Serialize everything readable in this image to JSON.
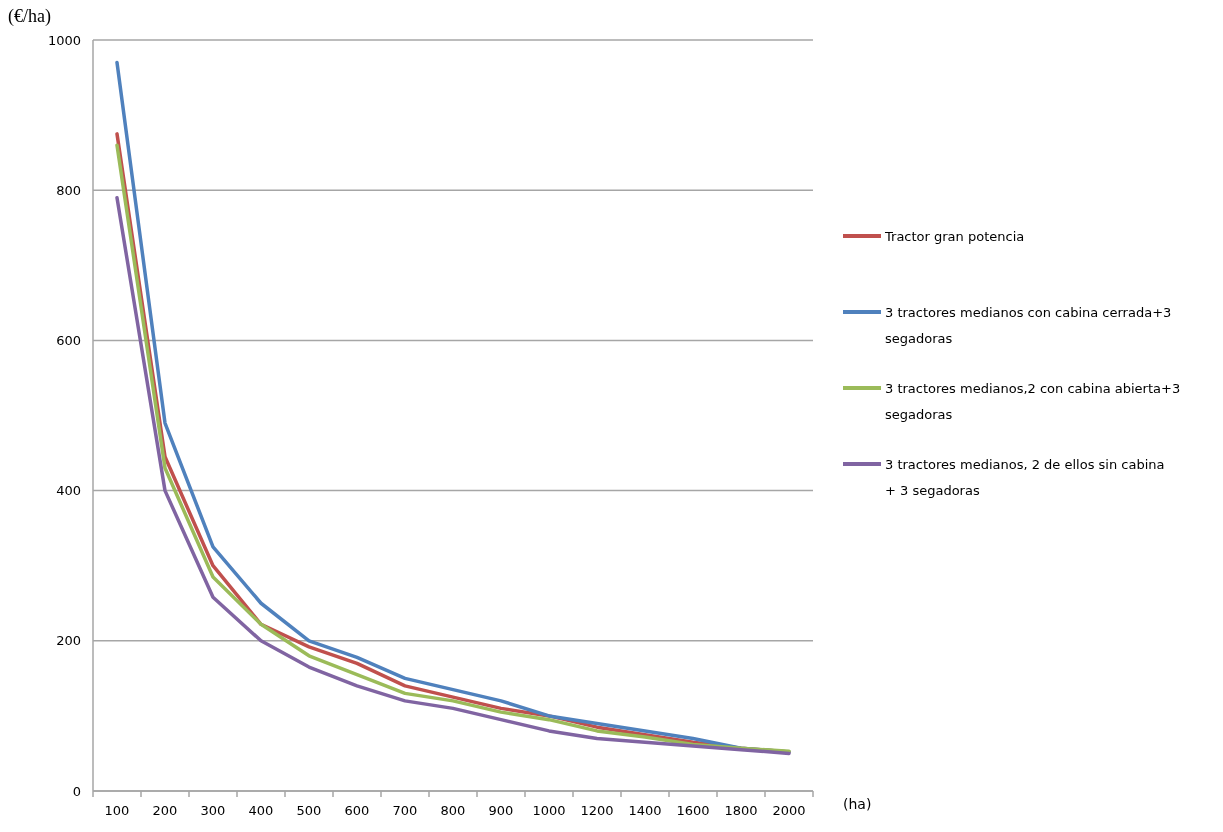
{
  "chart_data": {
    "type": "line",
    "ylabel": "(€/ha)",
    "xlabel": "(ha)",
    "categories": [
      "100",
      "200",
      "300",
      "400",
      "500",
      "600",
      "700",
      "800",
      "900",
      "1000",
      "1200",
      "1400",
      "1600",
      "1800",
      "2000"
    ],
    "series": [
      {
        "name": "Tractor gran potencia",
        "color": "#c0504d",
        "values": [
          875,
          445,
          300,
          222,
          192,
          170,
          140,
          125,
          110,
          100,
          85,
          75,
          65,
          57,
          52
        ]
      },
      {
        "name": "3 tractores medianos con cabina cerrada+3 segadoras",
        "color": "#4f81bd",
        "values": [
          970,
          490,
          325,
          250,
          200,
          178,
          150,
          135,
          120,
          100,
          90,
          80,
          70,
          57,
          52
        ]
      },
      {
        "name": "3 tractores medianos,2 con cabina abierta+3 segadoras",
        "color": "#9bbb59",
        "values": [
          860,
          430,
          285,
          222,
          180,
          155,
          130,
          120,
          105,
          95,
          80,
          72,
          62,
          57,
          53
        ]
      },
      {
        "name": "3 tractores medianos, 2 de ellos sin cabina + 3 segadoras",
        "color": "#8064a2",
        "values": [
          790,
          400,
          258,
          200,
          165,
          140,
          120,
          110,
          95,
          80,
          70,
          65,
          60,
          55,
          50
        ]
      }
    ],
    "ylim": [
      0,
      1000
    ],
    "yticks": [
      0,
      200,
      400,
      600,
      800,
      1000
    ],
    "grid": "y",
    "legend": "right",
    "marker": "none",
    "line_style": "solid"
  }
}
